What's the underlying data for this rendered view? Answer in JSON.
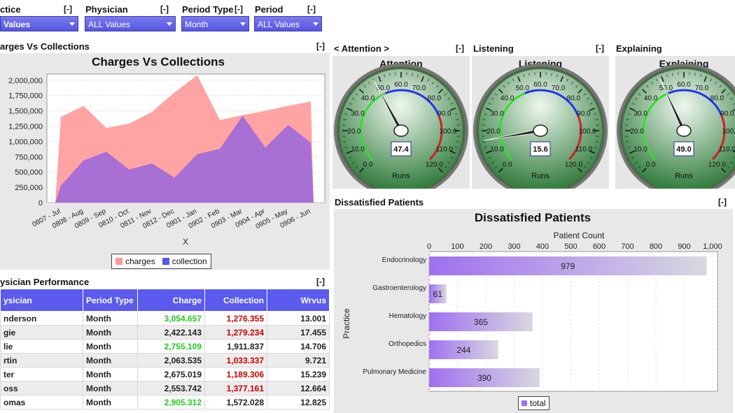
{
  "filters": {
    "practice": {
      "label": "ctice",
      "value": "Values",
      "collapse": "[-]"
    },
    "physician": {
      "label": "Physician",
      "value": "ALL Values",
      "collapse": "[-]"
    },
    "period_type": {
      "label": "Period Type",
      "value": "Month",
      "collapse": "[-]"
    },
    "period": {
      "label": "Period",
      "value": "ALL Values",
      "collapse": "[-]"
    }
  },
  "charges_panel": {
    "title": "arges Vs Collections",
    "collapse": "[-]",
    "legend_charges": "charges",
    "legend_collection": "collection"
  },
  "gauges": [
    {
      "panel_title": "< Attention >",
      "collapse": "[-]",
      "title": "Attention",
      "value": 47.4,
      "value_label": "47.4",
      "unit": "Runs"
    },
    {
      "panel_title": "Listening",
      "collapse": "[-]",
      "title": "Listening",
      "value": 15.6,
      "value_label": "15.6",
      "unit": "Runs"
    },
    {
      "panel_title": "Explaining",
      "collapse": "",
      "title": "Explaining",
      "value": 49.0,
      "value_label": "49.0",
      "unit": "Runs"
    }
  ],
  "gauge_ticks": [
    "0.0",
    "10.0",
    "20.0",
    "30.0",
    "40.0",
    "50.0",
    "60.0",
    "70.0",
    "80.0",
    "90.0",
    "100.0",
    "110.0",
    "120.0"
  ],
  "dissatisfied_panel": {
    "title": "Dissatisfied Patients",
    "collapse": "[-]"
  },
  "performance": {
    "title": "ysician Performance",
    "collapse": "[-]",
    "headers": [
      "ysician",
      "Period Type",
      "Charge",
      "Collection",
      "Wrvus"
    ],
    "rows": [
      {
        "name": "nderson",
        "period": "Month",
        "charge": "3,054.657",
        "collection": "1,276.355",
        "wrvus": "13.001",
        "charge_color": "green",
        "collection_color": "red"
      },
      {
        "name": "gie",
        "period": "Month",
        "charge": "2,422.143",
        "collection": "1,279.234",
        "wrvus": "17.455",
        "charge_color": "",
        "collection_color": "red"
      },
      {
        "name": "lie",
        "period": "Month",
        "charge": "2,755.109",
        "collection": "1,911.837",
        "wrvus": "14.706",
        "charge_color": "green",
        "collection_color": ""
      },
      {
        "name": "rtin",
        "period": "Month",
        "charge": "2,063.535",
        "collection": "1,033.337",
        "wrvus": "9.721",
        "charge_color": "",
        "collection_color": "red"
      },
      {
        "name": "ter",
        "period": "Month",
        "charge": "2,675.019",
        "collection": "1,189.306",
        "wrvus": "15.239",
        "charge_color": "",
        "collection_color": "red"
      },
      {
        "name": "oss",
        "period": "Month",
        "charge": "2,553.742",
        "collection": "1,377.161",
        "wrvus": "12.664",
        "charge_color": "",
        "collection_color": "red"
      },
      {
        "name": "omas",
        "period": "Month",
        "charge": "2,905.312",
        "collection": "1,572.028",
        "wrvus": "12.825",
        "charge_color": "green",
        "collection_color": ""
      }
    ]
  },
  "colors": {
    "charges": "#ff9999",
    "collection": "#9966dd",
    "header_blue": "#5a5aee",
    "bar": "#a070f0"
  },
  "chart_data": [
    {
      "type": "area",
      "title": "Charges Vs Collections",
      "xlabel": "X",
      "ylabel": "",
      "categories": [
        "0807 - Jul",
        "0808 - Aug",
        "0809 - Sep",
        "0810 - Oct",
        "0811 - Nov",
        "0812 - Dec",
        "0901 - Jan",
        "0902 - Feb",
        "0903 - Mar",
        "0904 - Apr",
        "0905 - May",
        "0906 - Jun"
      ],
      "y_ticks": [
        "0",
        "250,000",
        "500,000",
        "750,000",
        "1,000,000",
        "1,250,000",
        "1,500,000",
        "1,750,000",
        "2,000,000"
      ],
      "ylim": [
        0,
        2100000
      ],
      "series": [
        {
          "name": "charges",
          "values": [
            1400000,
            1580000,
            1220000,
            1290000,
            1480000,
            1800000,
            2080000,
            1350000,
            1430000,
            1500000,
            1580000,
            1650000
          ]
        },
        {
          "name": "collection",
          "values": [
            280000,
            690000,
            830000,
            540000,
            640000,
            410000,
            790000,
            880000,
            1420000,
            900000,
            1270000,
            980000
          ]
        }
      ]
    },
    {
      "type": "bar",
      "title": "Dissatisfied Patients",
      "xlabel": "Patient Count",
      "ylabel": "Practice",
      "categories": [
        "Endocrinology",
        "Gastroenterology",
        "Hematology",
        "Orthopedics",
        "Pulmonary Medicine"
      ],
      "values": [
        979,
        61,
        365,
        244,
        390
      ],
      "value_labels": [
        "979",
        "61",
        "365",
        "244",
        "390"
      ],
      "x_ticks": [
        "0",
        "100",
        "200",
        "300",
        "400",
        "500",
        "600",
        "700",
        "800",
        "900",
        "1,000"
      ],
      "xlim": [
        0,
        1000
      ],
      "legend": "total"
    }
  ]
}
